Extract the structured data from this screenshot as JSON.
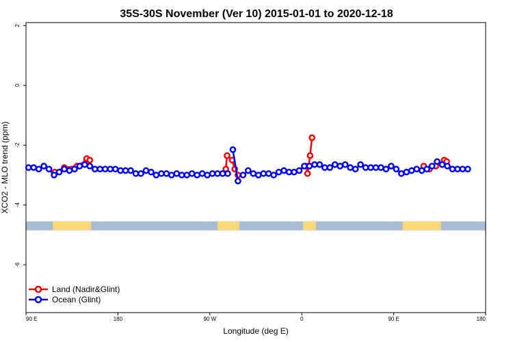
{
  "chart_data": {
    "type": "line",
    "title": "35S-30S November (Ver 10)   2015-01-01 to 2020-12-18",
    "xlabel": "Longitude (deg E)",
    "ylabel": "XCO2 - MLO trend (ppm)",
    "xlim": [
      90,
      450
    ],
    "ylim": [
      -7.6,
      2.1
    ],
    "x_ticks": [
      {
        "value": 90,
        "label": "90 E"
      },
      {
        "value": 162,
        "label": "180"
      },
      {
        "value": 234,
        "label": "90 W"
      },
      {
        "value": 306,
        "label": "0"
      },
      {
        "value": 378,
        "label": "90 E"
      },
      {
        "value": 450,
        "label": "180"
      }
    ],
    "y_ticks": [
      {
        "value": 2,
        "label": "2"
      },
      {
        "value": 0,
        "label": "0"
      },
      {
        "value": -2,
        "label": "-2"
      },
      {
        "value": -4,
        "label": "-4"
      },
      {
        "value": -6,
        "label": "-6"
      }
    ],
    "grid": false,
    "legend_position": "bottom-left",
    "map_strip": {
      "y_range": [
        -4.85,
        -4.55
      ],
      "ocean_color": "#a8bcd6",
      "land_color": "#fad878",
      "land_segments": [
        [
          111,
          141
        ],
        [
          240,
          257
        ],
        [
          307,
          317
        ],
        [
          385,
          415
        ]
      ]
    },
    "series": [
      {
        "name": "Land (Nadir&Glint)",
        "color": "#ff0000",
        "points": [
          [
            112.5,
            -2.9
          ],
          [
            120,
            -2.75
          ],
          [
            130,
            -2.7
          ],
          [
            137.5,
            -2.5
          ],
          [
            137.5,
            -2.45
          ],
          [
            140,
            -2.5
          ],
          [
            246.5,
            -2.8
          ],
          [
            247.5,
            -2.35
          ],
          [
            251.5,
            -2.5
          ],
          [
            253.5,
            -2.8
          ],
          [
            256,
            -3.0
          ],
          [
            309.5,
            -2.7
          ],
          [
            310.5,
            -2.95
          ],
          [
            312.5,
            -2.35
          ],
          [
            314,
            -1.75
          ],
          [
            401.5,
            -2.7
          ],
          [
            406,
            -2.8
          ],
          [
            411,
            -2.7
          ],
          [
            417.5,
            -2.5
          ],
          [
            419.5,
            -2.55
          ]
        ],
        "segments": [
          [
            0,
            5
          ],
          [
            6,
            10
          ],
          [
            11,
            14
          ],
          [
            15,
            19
          ]
        ]
      },
      {
        "name": "Ocean (Glint)",
        "color": "#0000ff",
        "points": [
          [
            92,
            -2.75
          ],
          [
            96,
            -2.75
          ],
          [
            100,
            -2.8
          ],
          [
            104,
            -2.7
          ],
          [
            108,
            -2.8
          ],
          [
            112,
            -3.0
          ],
          [
            116,
            -2.9
          ],
          [
            120,
            -2.8
          ],
          [
            124,
            -2.85
          ],
          [
            128,
            -2.8
          ],
          [
            132,
            -2.7
          ],
          [
            136,
            -2.65
          ],
          [
            140,
            -2.7
          ],
          [
            144,
            -2.8
          ],
          [
            148,
            -2.8
          ],
          [
            152,
            -2.8
          ],
          [
            156,
            -2.8
          ],
          [
            160,
            -2.8
          ],
          [
            164,
            -2.85
          ],
          [
            168,
            -2.85
          ],
          [
            172,
            -2.85
          ],
          [
            176,
            -2.95
          ],
          [
            180,
            -2.95
          ],
          [
            184,
            -2.85
          ],
          [
            188,
            -2.9
          ],
          [
            192,
            -3.0
          ],
          [
            196,
            -2.95
          ],
          [
            200,
            -2.95
          ],
          [
            204,
            -3.0
          ],
          [
            208,
            -2.95
          ],
          [
            212,
            -3.0
          ],
          [
            216,
            -3.0
          ],
          [
            220,
            -2.95
          ],
          [
            224,
            -3.0
          ],
          [
            228,
            -2.95
          ],
          [
            232,
            -3.0
          ],
          [
            236,
            -2.95
          ],
          [
            240,
            -2.95
          ],
          [
            244,
            -2.95
          ],
          [
            248,
            -2.95
          ],
          [
            252,
            -2.15
          ],
          [
            256,
            -3.2
          ],
          [
            260,
            -3.0
          ],
          [
            264,
            -2.85
          ],
          [
            268,
            -2.95
          ],
          [
            272,
            -3.0
          ],
          [
            276,
            -2.95
          ],
          [
            280,
            -2.95
          ],
          [
            284,
            -3.0
          ],
          [
            288,
            -2.9
          ],
          [
            292,
            -2.85
          ],
          [
            296,
            -2.9
          ],
          [
            300,
            -2.9
          ],
          [
            304,
            -2.85
          ],
          [
            308,
            -2.7
          ],
          [
            312,
            -2.7
          ],
          [
            316,
            -2.65
          ],
          [
            320,
            -2.65
          ],
          [
            324,
            -2.75
          ],
          [
            328,
            -2.75
          ],
          [
            332,
            -2.65
          ],
          [
            336,
            -2.7
          ],
          [
            340,
            -2.65
          ],
          [
            344,
            -2.75
          ],
          [
            348,
            -2.8
          ],
          [
            352,
            -2.65
          ],
          [
            356,
            -2.75
          ],
          [
            360,
            -2.75
          ],
          [
            364,
            -2.75
          ],
          [
            368,
            -2.75
          ],
          [
            372,
            -2.8
          ],
          [
            376,
            -2.7
          ],
          [
            380,
            -2.8
          ],
          [
            384,
            -2.95
          ],
          [
            388,
            -2.9
          ],
          [
            392,
            -2.85
          ],
          [
            396,
            -2.8
          ],
          [
            400,
            -2.85
          ],
          [
            404,
            -2.8
          ],
          [
            408,
            -2.7
          ],
          [
            412,
            -2.55
          ],
          [
            416,
            -2.65
          ],
          [
            420,
            -2.7
          ],
          [
            424,
            -2.8
          ],
          [
            428,
            -2.8
          ],
          [
            432,
            -2.8
          ],
          [
            436,
            -2.8
          ]
        ],
        "segments": [
          [
            0,
            39
          ],
          [
            40,
            41
          ],
          [
            42,
            86
          ]
        ]
      }
    ]
  }
}
